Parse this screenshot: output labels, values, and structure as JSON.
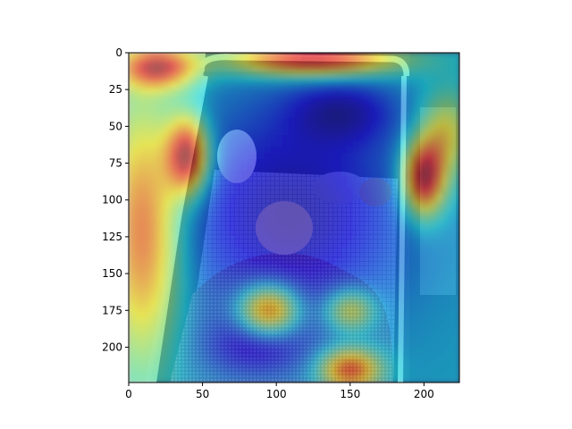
{
  "chart_data": {
    "type": "heatmap",
    "title": "",
    "xlabel": "",
    "ylabel": "",
    "xlim": [
      0,
      224
    ],
    "ylim": [
      224,
      0
    ],
    "y_axis_inverted": true,
    "x_ticks": [
      0,
      50,
      100,
      150,
      200
    ],
    "y_ticks": [
      0,
      25,
      50,
      75,
      100,
      125,
      150,
      175,
      200
    ],
    "x_tick_labels": [
      "0",
      "50",
      "100",
      "150",
      "200"
    ],
    "y_tick_labels": [
      "0",
      "25",
      "50",
      "75",
      "100",
      "125",
      "150",
      "175",
      "200"
    ],
    "colormap": "jet",
    "overlay_description_visible": false,
    "grid": false,
    "heat_hotspots": [
      {
        "x": 40,
        "y": 70,
        "intensity": 1.0,
        "sx": 10,
        "sy": 18
      },
      {
        "x": 200,
        "y": 85,
        "intensity": 1.0,
        "sx": 10,
        "sy": 18
      },
      {
        "x": 125,
        "y": 5,
        "intensity": 0.95,
        "sx": 40,
        "sy": 8
      },
      {
        "x": 20,
        "y": 10,
        "intensity": 0.85,
        "sx": 18,
        "sy": 10
      },
      {
        "x": 95,
        "y": 175,
        "intensity": 0.8,
        "sx": 14,
        "sy": 12
      },
      {
        "x": 150,
        "y": 215,
        "intensity": 0.75,
        "sx": 14,
        "sy": 10
      },
      {
        "x": 10,
        "y": 120,
        "intensity": 0.75,
        "sx": 18,
        "sy": 60
      },
      {
        "x": 215,
        "y": 55,
        "intensity": 0.45,
        "sx": 12,
        "sy": 20
      },
      {
        "x": 150,
        "y": 175,
        "intensity": 0.5,
        "sx": 12,
        "sy": 10
      }
    ],
    "cool_regions": [
      {
        "x": 110,
        "y": 110,
        "strength": 0.85,
        "sx": 55,
        "sy": 55
      },
      {
        "x": 145,
        "y": 40,
        "strength": 0.6,
        "sx": 25,
        "sy": 15
      },
      {
        "x": 85,
        "y": 200,
        "strength": 0.5,
        "sx": 25,
        "sy": 15
      }
    ]
  },
  "colors": {
    "background": "#ffffff",
    "axis": "#000000",
    "photo_dark": "#3a3858",
    "photo_crib_rail": "#c8c0c0",
    "blanket": "#8a5a7a"
  }
}
